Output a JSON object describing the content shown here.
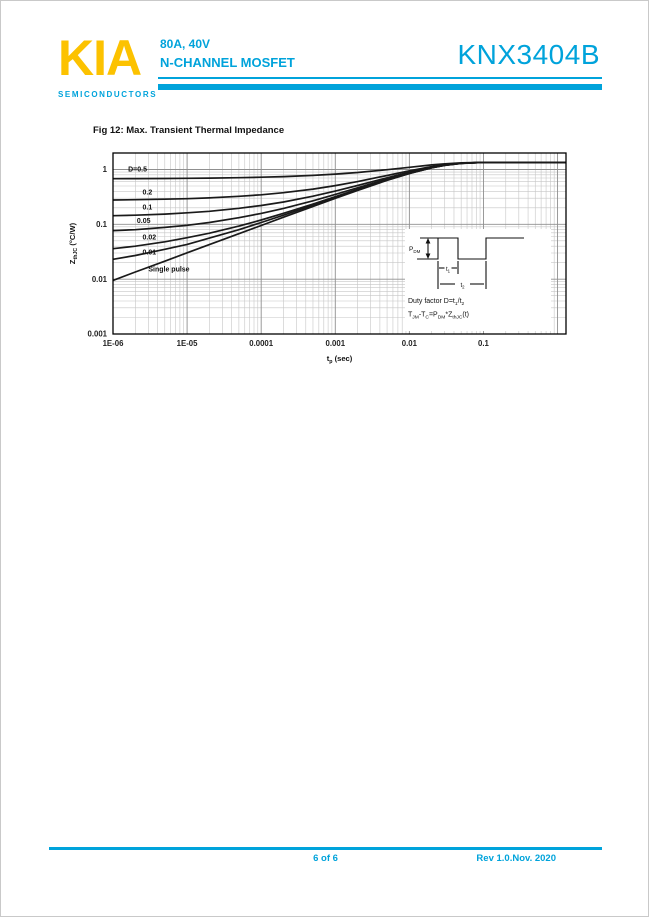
{
  "header": {
    "logo_text": "KIA",
    "logo_sub": "SEMICONDUCTORS",
    "logo_color": "#FCC200",
    "accent": "#00A3DB",
    "rating": "80A, 40V",
    "family": "N-CHANNEL MOSFET",
    "part_number": "KNX3404B"
  },
  "figure": {
    "title": "Fig 12: Max. Transient Thermal Impedance"
  },
  "chart_data": {
    "type": "line",
    "title": "Fig 12: Max. Transient Thermal Impedance",
    "x_scale": "log",
    "y_scale": "log",
    "xlim": [
      1e-06,
      1.3
    ],
    "ylim": [
      0.001,
      2
    ],
    "grid_on": true,
    "xlabel_rich": [
      {
        "t": "t"
      },
      {
        "t": "p",
        "sub": true
      },
      {
        "t": " (sec)"
      }
    ],
    "ylabel_rich": [
      {
        "t": "Z"
      },
      {
        "t": "thJC",
        "sub": true
      },
      {
        "t": " (°C/W)"
      }
    ],
    "x_ticks": [
      {
        "v": 1e-06,
        "label": "1E-06"
      },
      {
        "v": 1e-05,
        "label": "1E-05"
      },
      {
        "v": 0.0001,
        "label": "0.0001"
      },
      {
        "v": 0.001,
        "label": "0.001"
      },
      {
        "v": 0.01,
        "label": "0.01"
      },
      {
        "v": 0.1,
        "label": "0.1"
      }
    ],
    "y_ticks": [
      {
        "v": 1,
        "label": "1"
      },
      {
        "v": 0.1,
        "label": "0.1"
      },
      {
        "v": 0.01,
        "label": "0.01"
      },
      {
        "v": 0.001,
        "label": "0.001"
      }
    ],
    "x": [
      1e-06,
      2e-06,
      5e-06,
      1e-05,
      2e-05,
      5e-05,
      0.0001,
      0.0002,
      0.0005,
      0.001,
      0.002,
      0.005,
      0.01,
      0.02,
      0.03,
      0.05,
      0.1,
      0.3,
      1.0,
      1.3
    ],
    "series": [
      {
        "name": "D=0.5",
        "values": [
          0.68,
          0.682,
          0.686,
          0.69,
          0.696,
          0.709,
          0.723,
          0.742,
          0.781,
          0.824,
          0.883,
          0.992,
          1.098,
          1.212,
          1.27,
          1.322,
          1.348,
          1.35,
          1.35,
          1.35
        ]
      },
      {
        "name": "0.2",
        "values": [
          0.278,
          0.281,
          0.287,
          0.294,
          0.304,
          0.324,
          0.346,
          0.378,
          0.44,
          0.509,
          0.603,
          0.778,
          0.947,
          1.129,
          1.222,
          1.305,
          1.346,
          1.35,
          1.35,
          1.35
        ]
      },
      {
        "name": "0.1",
        "values": [
          0.144,
          0.147,
          0.154,
          0.162,
          0.173,
          0.196,
          0.221,
          0.256,
          0.326,
          0.403,
          0.51,
          0.706,
          0.897,
          1.101,
          1.206,
          1.299,
          1.346,
          1.35,
          1.35,
          1.35
        ]
      },
      {
        "name": "0.05",
        "values": [
          0.077,
          0.08,
          0.088,
          0.096,
          0.108,
          0.132,
          0.158,
          0.195,
          0.269,
          0.351,
          0.463,
          0.671,
          0.872,
          1.087,
          1.198,
          1.296,
          1.346,
          1.35,
          1.35,
          1.35
        ]
      },
      {
        "name": "0.02",
        "values": [
          0.036,
          0.04,
          0.048,
          0.057,
          0.069,
          0.093,
          0.12,
          0.159,
          0.235,
          0.319,
          0.435,
          0.649,
          0.857,
          1.079,
          1.193,
          1.295,
          1.346,
          1.35,
          1.35,
          1.35
        ]
      },
      {
        "name": "0.01",
        "values": [
          0.023,
          0.027,
          0.035,
          0.043,
          0.056,
          0.08,
          0.108,
          0.147,
          0.224,
          0.309,
          0.426,
          0.642,
          0.852,
          1.076,
          1.192,
          1.294,
          1.346,
          1.35,
          1.35,
          1.35
        ]
      },
      {
        "name": "Single pulse",
        "values": [
          0.0095,
          0.0135,
          0.0213,
          0.0302,
          0.0427,
          0.0675,
          0.0953,
          0.135,
          0.212,
          0.298,
          0.416,
          0.635,
          0.847,
          1.073,
          1.19,
          1.293,
          1.345,
          1.35,
          1.35,
          1.35
        ]
      }
    ],
    "curve_labels": [
      {
        "text": "D=0.5",
        "t": 1.6e-06,
        "z": 0.92
      },
      {
        "text": "0.2",
        "t": 2.5e-06,
        "z": 0.35
      },
      {
        "text": "0.1",
        "t": 2.5e-06,
        "z": 0.185
      },
      {
        "text": "0.05",
        "t": 2.1e-06,
        "z": 0.105
      },
      {
        "text": "0.02",
        "t": 2.5e-06,
        "z": 0.053
      },
      {
        "text": "0.01",
        "t": 2.5e-06,
        "z": 0.028
      },
      {
        "text": "Single pulse",
        "t": 3e-06,
        "z": 0.0138
      }
    ],
    "curve_color": "#1a1a1a",
    "grid": {
      "major": "#8f8f8f",
      "minor": "#c6c6c6"
    },
    "frame_color": "#000000"
  },
  "inset": {
    "pdm": [
      {
        "t": "P"
      },
      {
        "t": "DM",
        "sub": true
      }
    ],
    "t1": [
      {
        "t": "t"
      },
      {
        "t": "1",
        "sub": true
      }
    ],
    "t2": [
      {
        "t": "t"
      },
      {
        "t": "2",
        "sub": true
      }
    ],
    "duty_line": [
      {
        "t": "Duty factor D=t"
      },
      {
        "t": "1",
        "sub": true
      },
      {
        "t": "/t"
      },
      {
        "t": "2",
        "sub": true
      }
    ],
    "formula_line": [
      {
        "t": "T"
      },
      {
        "t": "JM",
        "sub": true
      },
      {
        "t": "-T"
      },
      {
        "t": "C",
        "sub": true
      },
      {
        "t": "=P"
      },
      {
        "t": "DM",
        "sub": true
      },
      {
        "t": "*Z"
      },
      {
        "t": "thJC",
        "sub": true
      },
      {
        "t": "(t)"
      }
    ]
  },
  "footer": {
    "page_info": "6 of 6",
    "revision": "Rev 1.0.Nov. 2020"
  }
}
